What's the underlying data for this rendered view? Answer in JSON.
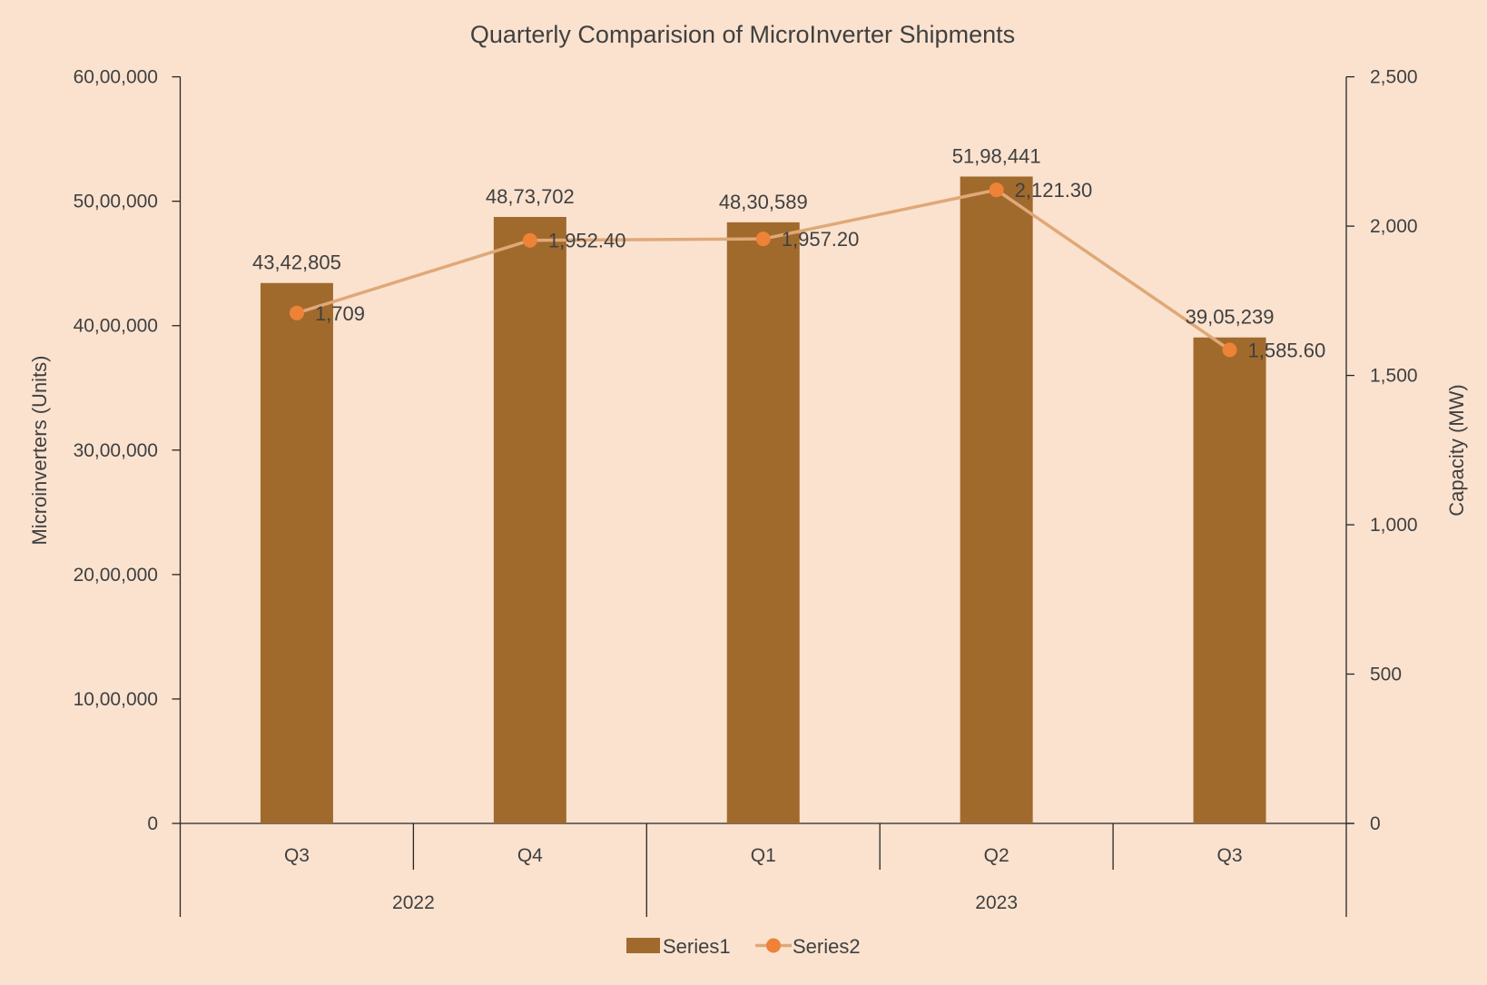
{
  "chart_data": {
    "type": "bar+line",
    "title": "Quarterly Comparision of MicroInverter Shipments",
    "categories": [
      "Q3",
      "Q4",
      "Q1",
      "Q2",
      "Q3"
    ],
    "category_groups": [
      {
        "label": "2022",
        "span": 2
      },
      {
        "label": "2023",
        "span": 3
      }
    ],
    "y_left": {
      "label": "Microinverters (Units)",
      "range": [
        0,
        6000000
      ],
      "ticks": [
        0,
        1000000,
        2000000,
        3000000,
        4000000,
        5000000,
        6000000
      ],
      "tick_labels": [
        "0",
        "10,00,000",
        "20,00,000",
        "30,00,000",
        "40,00,000",
        "50,00,000",
        "60,00,000"
      ]
    },
    "y_right": {
      "label": "Capacity (MW)",
      "range": [
        0,
        2500
      ],
      "ticks": [
        0,
        500,
        1000,
        1500,
        2000,
        2500
      ],
      "tick_labels": [
        "0",
        "500",
        "1,000",
        "1,500",
        "2,000",
        "2,500"
      ]
    },
    "series": [
      {
        "name": "Series1",
        "type": "bar",
        "axis": "left",
        "values": [
          4342805,
          4873702,
          4830589,
          5198441,
          3905239
        ],
        "labels": [
          "43,42,805",
          "48,73,702",
          "48,30,589",
          "51,98,441",
          "39,05,239"
        ],
        "color": "#a06a2d"
      },
      {
        "name": "Series2",
        "type": "line",
        "axis": "right",
        "values": [
          1709,
          1952.4,
          1957.2,
          2121.3,
          1585.6
        ],
        "labels": [
          "1,709",
          "1,952.40",
          "1,957.20",
          "2,121.30",
          "1,585.60"
        ],
        "color": "#e0a878",
        "marker_color": "#ee8236"
      }
    ],
    "grid": false,
    "legend": "bottom"
  }
}
